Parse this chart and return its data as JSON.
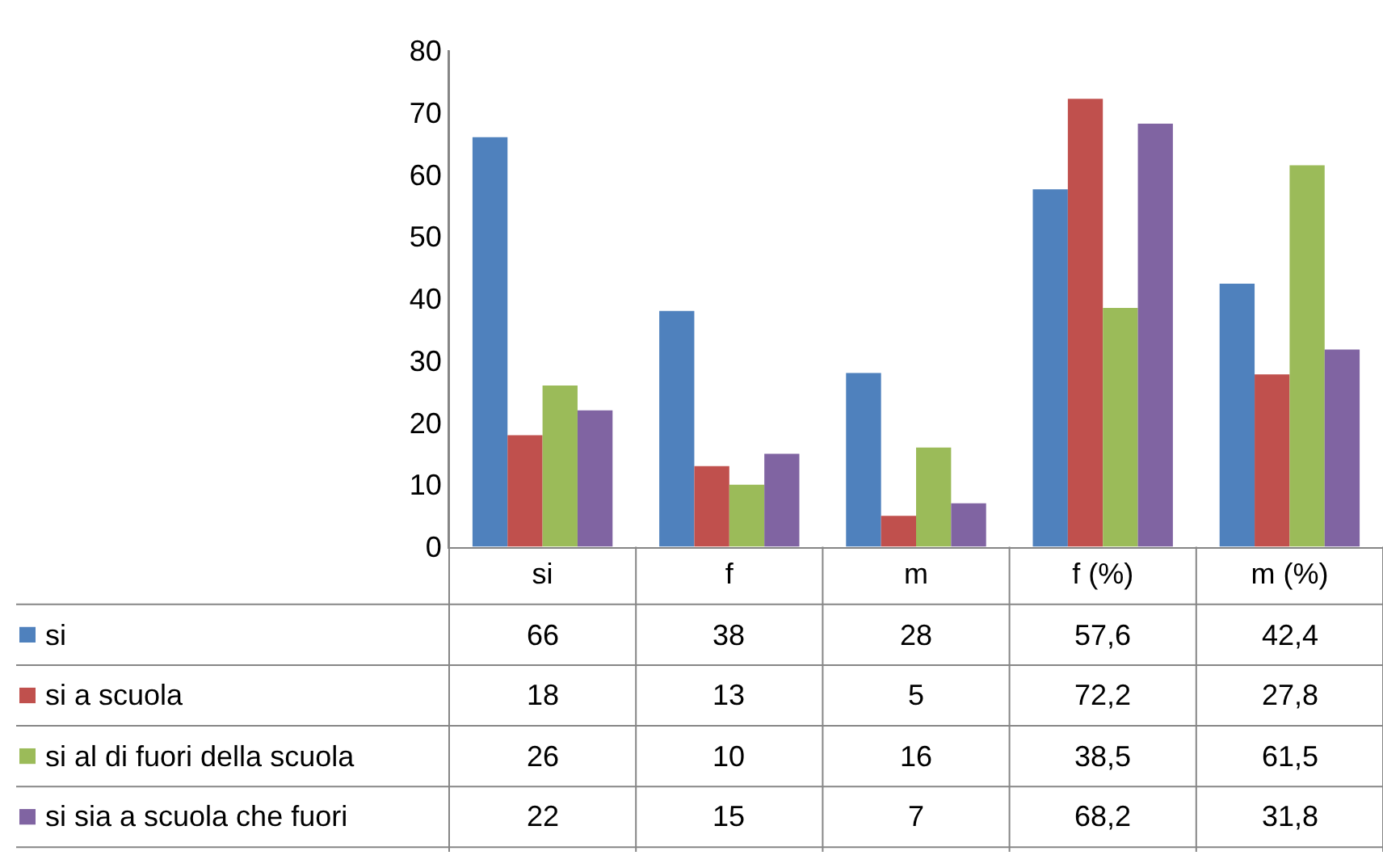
{
  "chart_data": {
    "type": "bar",
    "categories": [
      "si",
      "f",
      "m",
      "f (%)",
      "m (%)"
    ],
    "series": [
      {
        "name": "si",
        "color": "#4f81bd",
        "values": [
          66,
          38,
          28,
          57.6,
          42.4
        ],
        "value_labels": [
          "66",
          "38",
          "28",
          "57,6",
          "42,4"
        ]
      },
      {
        "name": "si a scuola",
        "color": "#c0504d",
        "values": [
          18,
          13,
          5,
          72.2,
          27.8
        ],
        "value_labels": [
          "18",
          "13",
          "5",
          "72,2",
          "27,8"
        ]
      },
      {
        "name": "si al di fuori della scuola",
        "color": "#9bbb59",
        "values": [
          26,
          10,
          16,
          38.5,
          61.5
        ],
        "value_labels": [
          "26",
          "10",
          "16",
          "38,5",
          "61,5"
        ]
      },
      {
        "name": "si sia a scuola che fuori",
        "color": "#8064a2",
        "values": [
          22,
          15,
          7,
          68.2,
          31.8
        ],
        "value_labels": [
          "22",
          "15",
          "7",
          "68,2",
          "31,8"
        ]
      }
    ],
    "ylim": [
      0,
      80
    ],
    "yticks": [
      0,
      10,
      20,
      30,
      40,
      50,
      60,
      70,
      80
    ],
    "legend": "bottom left"
  }
}
